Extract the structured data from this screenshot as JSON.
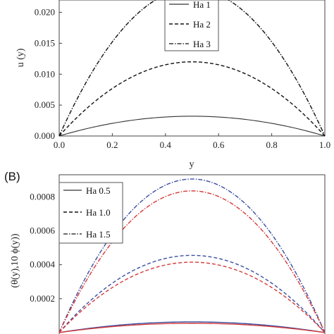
{
  "chart_data": [
    {
      "type": "line",
      "title": "",
      "xlabel": "y",
      "ylabel": "u (y)",
      "xlim": [
        0,
        1
      ],
      "ylim": [
        0,
        0.022
      ],
      "x_ticks": [
        "0.0",
        "0.2",
        "0.4",
        "0.6",
        "0.8",
        "1.0"
      ],
      "y_ticks": [
        "0.000",
        "0.005",
        "0.010",
        "0.015",
        "0.020"
      ],
      "legend_position": "top-center",
      "series": [
        {
          "name": "Ha 1",
          "style": "solid",
          "color": "#333333",
          "x": [
            0,
            0.25,
            0.5,
            0.75,
            1
          ],
          "y": [
            0,
            0.0024,
            0.0032,
            0.0024,
            0
          ]
        },
        {
          "name": "Ha 2",
          "style": "dashed",
          "color": "#111111",
          "x": [
            0,
            0.25,
            0.5,
            0.75,
            1
          ],
          "y": [
            0,
            0.009,
            0.012,
            0.009,
            0
          ]
        },
        {
          "name": "Ha 3",
          "style": "dashdot",
          "color": "#111111",
          "x": [
            0,
            0.25,
            0.5,
            0.75,
            1
          ],
          "y": [
            0,
            0.0179,
            0.0238,
            0.0179,
            0
          ]
        }
      ]
    },
    {
      "type": "line",
      "panel_label": "(B)",
      "title": "",
      "xlabel": "",
      "ylabel": "(θ(y),10 ϕ(y))",
      "xlim": [
        0,
        1
      ],
      "ylim": [
        0,
        0.00093
      ],
      "y_ticks": [
        "0.0002",
        "0.0004",
        "0.0006",
        "0.0008"
      ],
      "legend_position": "top-left",
      "legend": [
        {
          "name": "Ha 0.5",
          "style": "solid"
        },
        {
          "name": "Ha 1.0",
          "style": "dashed"
        },
        {
          "name": "Ha 1.5",
          "style": "dashdot"
        }
      ],
      "series": [
        {
          "ha": "Ha 0.5",
          "quantity": "θ",
          "style": "solid",
          "color": "#3b4fa0",
          "peak": 6.3e-05
        },
        {
          "ha": "Ha 0.5",
          "quantity": "10ϕ",
          "style": "solid",
          "color": "#d43a3a",
          "peak": 5.5e-05
        },
        {
          "ha": "Ha 1.0",
          "quantity": "θ",
          "style": "dashed",
          "color": "#3b4fa0",
          "peak": 0.000455
        },
        {
          "ha": "Ha 1.0",
          "quantity": "10ϕ",
          "style": "dashed",
          "color": "#d43a3a",
          "peak": 0.000415
        },
        {
          "ha": "Ha 1.5",
          "quantity": "θ",
          "style": "dashdot",
          "color": "#3b4fa0",
          "peak": 0.000905
        },
        {
          "ha": "Ha 1.5",
          "quantity": "10ϕ",
          "style": "dashdot",
          "color": "#d43a3a",
          "peak": 0.000835
        }
      ]
    }
  ]
}
